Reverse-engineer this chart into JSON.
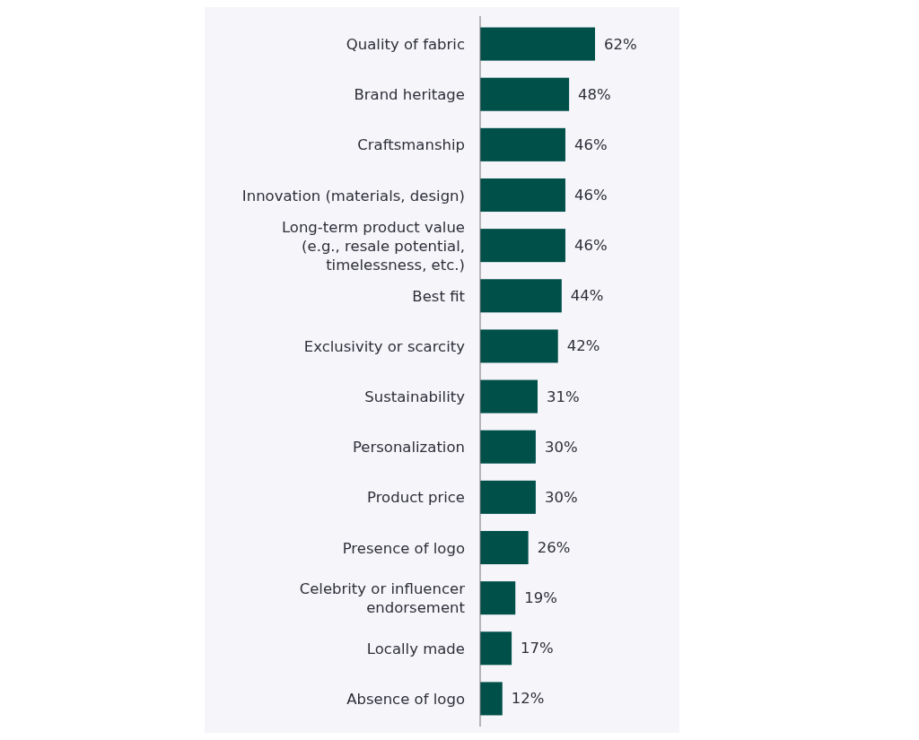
{
  "chart_data": {
    "type": "bar",
    "orientation": "horizontal",
    "categories": [
      "Quality of fabric",
      "Brand heritage",
      "Craftsmanship",
      "Innovation (materials, design)",
      "Long-term product value\n(e.g., resale potential,\ntimelessness, etc.)",
      "Best fit",
      "Exclusivity or scarcity",
      "Sustainability",
      "Personalization",
      "Product price",
      "Presence of logo",
      "Celebrity or influencer\nendorsement",
      "Locally made",
      "Absence of logo"
    ],
    "values": [
      62,
      48,
      46,
      46,
      46,
      44,
      42,
      31,
      30,
      30,
      26,
      19,
      17,
      12
    ],
    "value_labels": [
      "62%",
      "48%",
      "46%",
      "46%",
      "46%",
      "44%",
      "42%",
      "31%",
      "30%",
      "30%",
      "26%",
      "19%",
      "17%",
      "12%"
    ],
    "color": "#00504a"
  }
}
